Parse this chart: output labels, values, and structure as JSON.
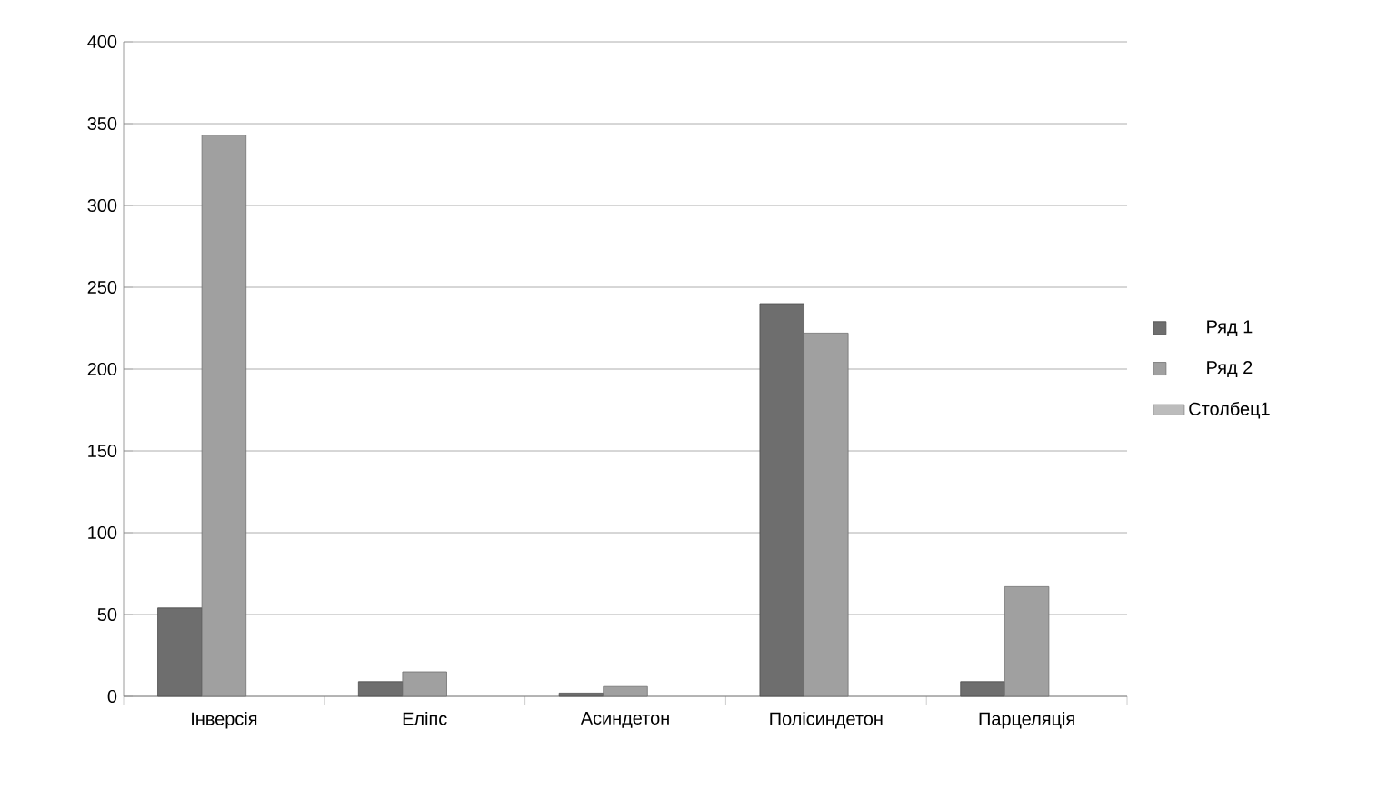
{
  "chart_data": {
    "type": "bar",
    "categories": [
      "Інверсія",
      "Еліпс",
      "Асиндетон",
      "Полісиндетон",
      "Парцеляція"
    ],
    "series": [
      {
        "name": "Ряд 1",
        "color": "#6e6e6e",
        "values": [
          54,
          9,
          2,
          240,
          9
        ]
      },
      {
        "name": "Ряд 2",
        "color": "#a0a0a0",
        "values": [
          343,
          15,
          6,
          222,
          67
        ]
      },
      {
        "name": "Столбец1",
        "color": "#bcbcbc",
        "values": [
          null,
          null,
          null,
          null,
          null
        ]
      }
    ],
    "ylim": [
      0,
      400
    ],
    "yticks": [
      0,
      50,
      100,
      150,
      200,
      250,
      300,
      350,
      400
    ],
    "grid": "y",
    "legend": "right"
  }
}
